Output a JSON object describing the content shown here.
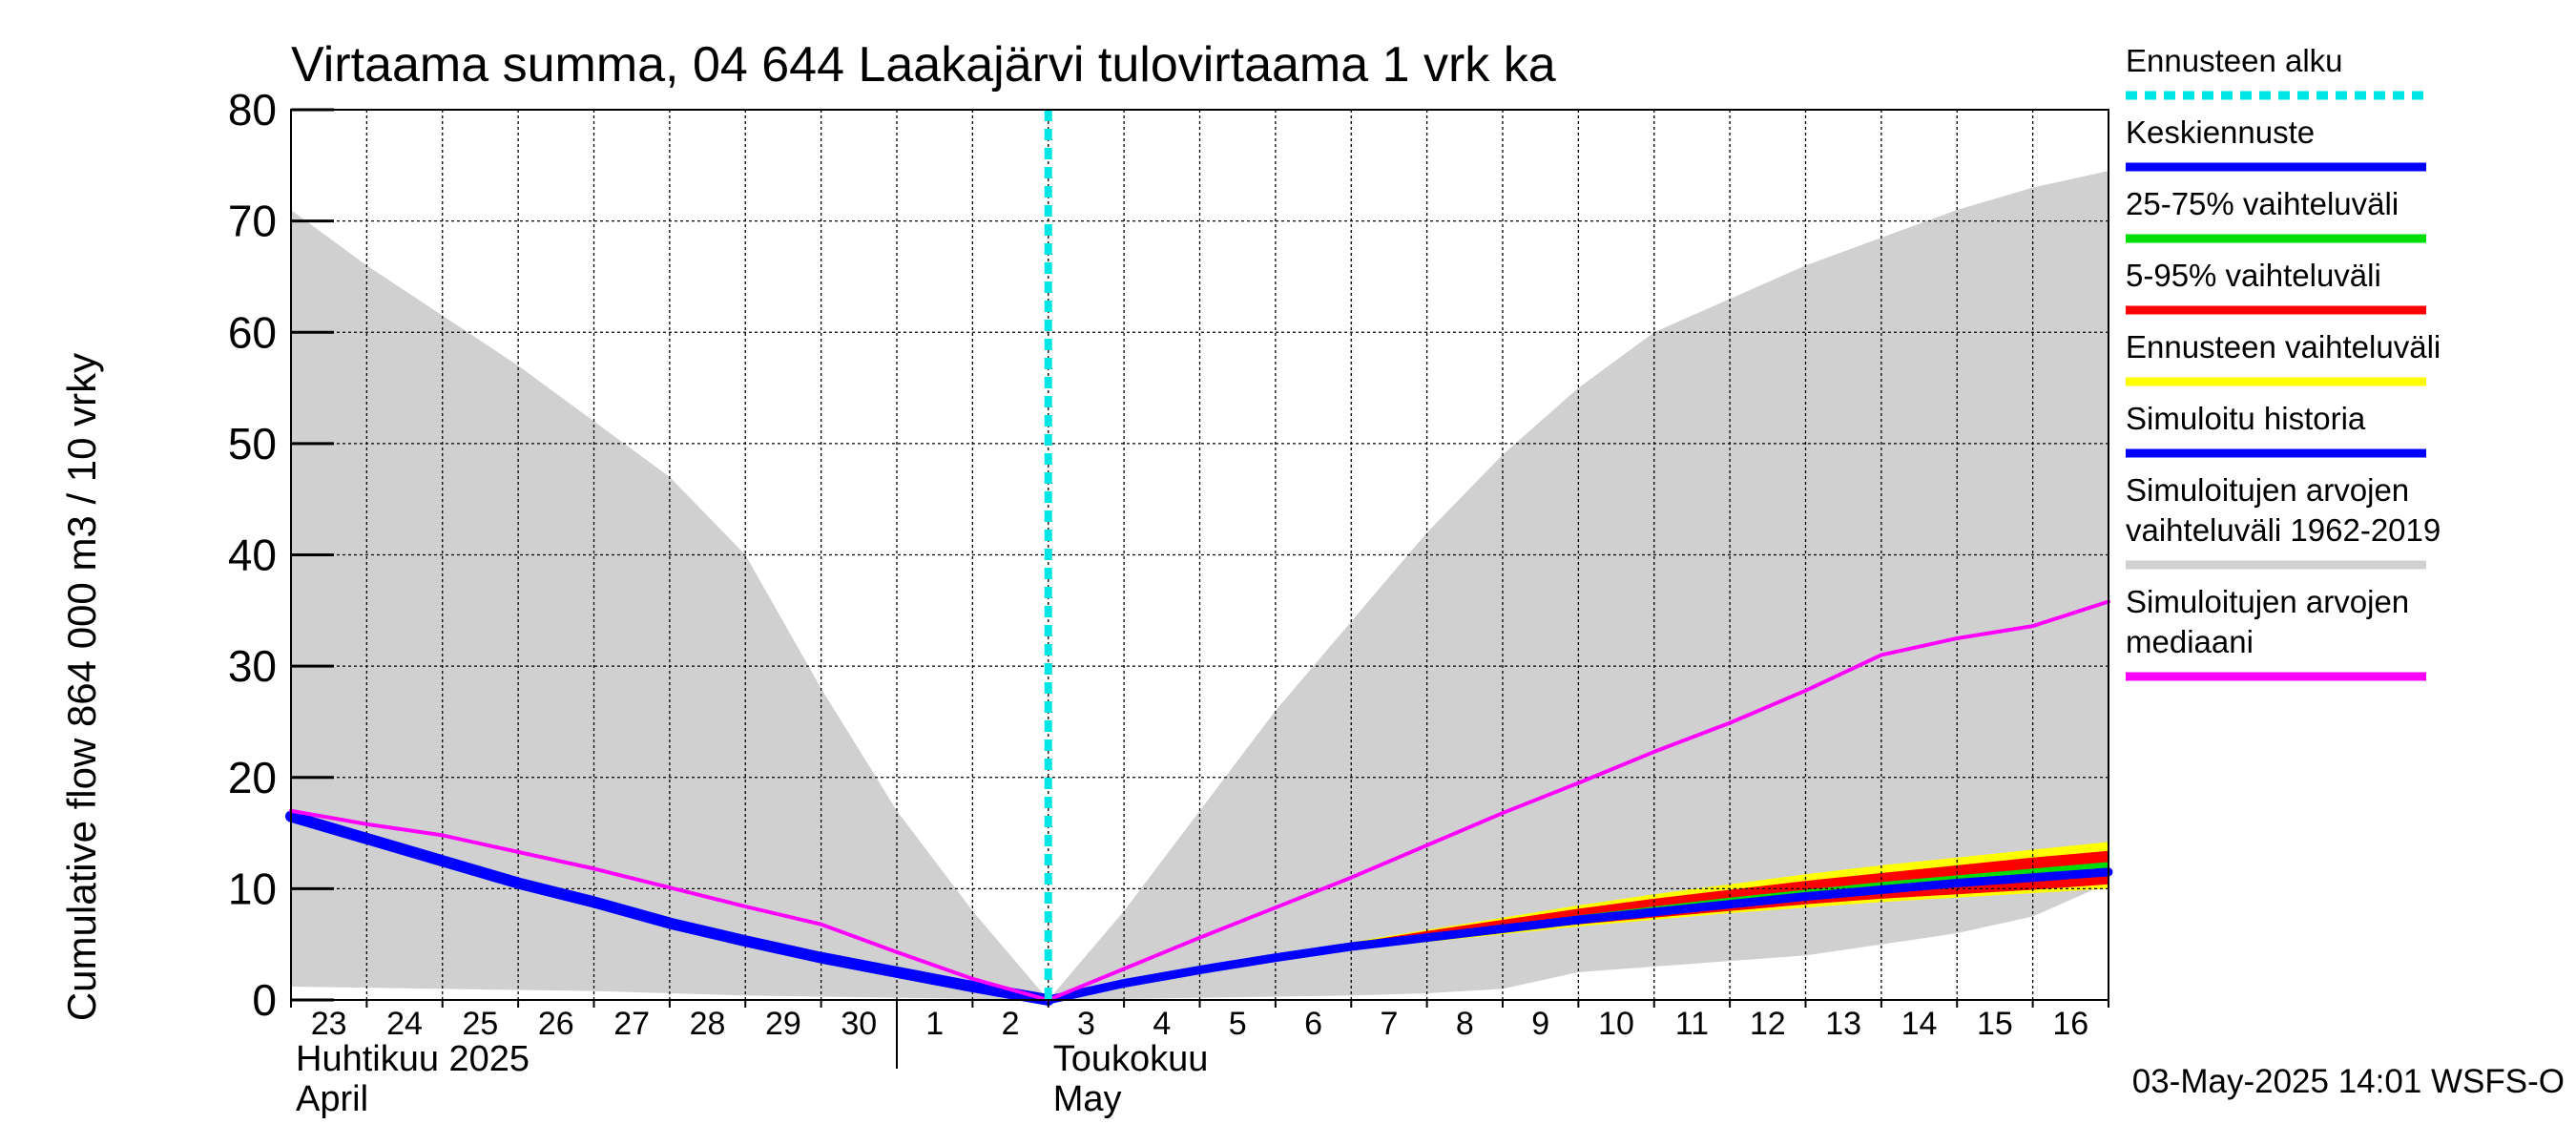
{
  "chart_data": {
    "type": "area",
    "title": "Virtaama summa, 04 644 Laakajärvi tulovirtaama 1 vrk ka",
    "ylabel": "Cumulative flow    864 000 m3 / 10 vrky",
    "xlabel": "",
    "ylim": [
      0,
      80
    ],
    "y_ticks": [
      0,
      10,
      20,
      30,
      40,
      50,
      60,
      70,
      80
    ],
    "grid": true,
    "legend_position": "right",
    "x_start": "2025-04-23",
    "x_end": "2025-05-17",
    "forecast_start": "2025-05-03",
    "x_tick_labels": [
      "23",
      "24",
      "25",
      "26",
      "27",
      "28",
      "29",
      "30",
      "1",
      "2",
      "3",
      "4",
      "5",
      "6",
      "7",
      "8",
      "9",
      "10",
      "11",
      "12",
      "13",
      "14",
      "15",
      "16"
    ],
    "x_tick_dates": [
      "2025-04-23",
      "2025-04-24",
      "2025-04-25",
      "2025-04-26",
      "2025-04-27",
      "2025-04-28",
      "2025-04-29",
      "2025-04-30",
      "2025-05-01",
      "2025-05-02",
      "2025-05-03",
      "2025-05-04",
      "2025-05-05",
      "2025-05-06",
      "2025-05-07",
      "2025-05-08",
      "2025-05-09",
      "2025-05-10",
      "2025-05-11",
      "2025-05-12",
      "2025-05-13",
      "2025-05-14",
      "2025-05-15",
      "2025-05-16"
    ],
    "month_labels": [
      {
        "line1": "Huhtikuu  2025",
        "line2": "April",
        "date": "2025-04-23"
      },
      {
        "line1": "Toukokuu",
        "line2": "May",
        "date": "2025-05-03"
      }
    ],
    "month_divider_date": "2025-05-01",
    "timestamp": "03-May-2025 14:01 WSFS-O",
    "series": [
      {
        "name": "Simuloitujen arvojen vaihteluväli 1962-2019",
        "kind": "band",
        "color": "#d0d0d0",
        "x": [
          "2025-04-23",
          "2025-04-24",
          "2025-04-25",
          "2025-04-26",
          "2025-04-27",
          "2025-04-28",
          "2025-04-29",
          "2025-04-30",
          "2025-05-01",
          "2025-05-02",
          "2025-05-03",
          "2025-05-04",
          "2025-05-05",
          "2025-05-06",
          "2025-05-07",
          "2025-05-08",
          "2025-05-09",
          "2025-05-10",
          "2025-05-11",
          "2025-05-12",
          "2025-05-13",
          "2025-05-14",
          "2025-05-15",
          "2025-05-16",
          "2025-05-17"
        ],
        "upper": [
          71,
          66,
          61.5,
          57,
          52,
          47,
          40,
          28,
          17,
          8,
          0,
          8,
          17,
          26,
          34,
          42,
          49,
          55,
          60,
          63,
          66,
          68.5,
          71,
          73,
          74.5
        ],
        "lower": [
          1.2,
          1.1,
          1.0,
          0.9,
          0.8,
          0.6,
          0.4,
          0.3,
          0.2,
          0.1,
          0,
          0.1,
          0.2,
          0.3,
          0.4,
          0.6,
          1.0,
          2.5,
          3.0,
          3.5,
          4.0,
          5.0,
          6.0,
          7.5,
          10.5
        ]
      },
      {
        "name": "Ennusteen vaihteluväli",
        "kind": "band",
        "color": "#ffff00",
        "x": [
          "2025-05-03",
          "2025-05-04",
          "2025-05-05",
          "2025-05-06",
          "2025-05-07",
          "2025-05-08",
          "2025-05-09",
          "2025-05-10",
          "2025-05-11",
          "2025-05-12",
          "2025-05-13",
          "2025-05-14",
          "2025-05-15",
          "2025-05-16",
          "2025-05-17"
        ],
        "upper": [
          0,
          1.6,
          3.0,
          4.1,
          5.2,
          6.3,
          7.4,
          8.5,
          9.5,
          10.4,
          11.3,
          12.1,
          12.8,
          13.5,
          14.2
        ],
        "lower": [
          0,
          1.4,
          2.6,
          3.6,
          4.5,
          5.2,
          5.9,
          6.6,
          7.2,
          7.8,
          8.3,
          8.8,
          9.2,
          9.6,
          10.0
        ]
      },
      {
        "name": "5-95% vaihteluväli",
        "kind": "band",
        "color": "#ff0000",
        "x": [
          "2025-05-03",
          "2025-05-04",
          "2025-05-05",
          "2025-05-06",
          "2025-05-07",
          "2025-05-08",
          "2025-05-09",
          "2025-05-10",
          "2025-05-11",
          "2025-05-12",
          "2025-05-13",
          "2025-05-14",
          "2025-05-15",
          "2025-05-16",
          "2025-05-17"
        ],
        "upper": [
          0,
          1.6,
          2.9,
          4.0,
          5.1,
          6.2,
          7.2,
          8.2,
          9.1,
          9.9,
          10.7,
          11.4,
          12.1,
          12.8,
          13.4
        ],
        "lower": [
          0,
          1.4,
          2.7,
          3.7,
          4.6,
          5.4,
          6.1,
          6.8,
          7.4,
          8.0,
          8.6,
          9.1,
          9.5,
          9.9,
          10.4
        ]
      },
      {
        "name": "25-75% vaihteluväli",
        "kind": "band",
        "color": "#00dd00",
        "x": [
          "2025-05-03",
          "2025-05-04",
          "2025-05-05",
          "2025-05-06",
          "2025-05-07",
          "2025-05-08",
          "2025-05-09",
          "2025-05-10",
          "2025-05-11",
          "2025-05-12",
          "2025-05-13",
          "2025-05-14",
          "2025-05-15",
          "2025-05-16",
          "2025-05-17"
        ],
        "upper": [
          0,
          1.55,
          2.8,
          3.9,
          4.9,
          5.8,
          6.7,
          7.6,
          8.4,
          9.2,
          9.9,
          10.6,
          11.2,
          11.8,
          12.4
        ],
        "lower": [
          0,
          1.45,
          2.7,
          3.7,
          4.7,
          5.5,
          6.3,
          7.1,
          7.8,
          8.5,
          9.2,
          9.8,
          10.3,
          10.8,
          11.2
        ]
      },
      {
        "name": "Simuloitu historia",
        "kind": "line",
        "color": "#0000ff",
        "width": 12,
        "x": [
          "2025-04-23",
          "2025-04-24",
          "2025-04-25",
          "2025-04-26",
          "2025-04-27",
          "2025-04-28",
          "2025-04-29",
          "2025-04-30",
          "2025-05-01",
          "2025-05-02",
          "2025-05-03"
        ],
        "values": [
          16.5,
          14.5,
          12.5,
          10.5,
          8.8,
          6.9,
          5.3,
          3.8,
          2.5,
          1.2,
          0
        ]
      },
      {
        "name": "Keskiennuste",
        "kind": "line",
        "color": "#0000ff",
        "width": 9,
        "x": [
          "2025-05-03",
          "2025-05-04",
          "2025-05-05",
          "2025-05-06",
          "2025-05-07",
          "2025-05-08",
          "2025-05-09",
          "2025-05-10",
          "2025-05-11",
          "2025-05-12",
          "2025-05-13",
          "2025-05-14",
          "2025-05-15",
          "2025-05-16",
          "2025-05-17"
        ],
        "values": [
          0,
          1.5,
          2.7,
          3.8,
          4.8,
          5.6,
          6.4,
          7.2,
          7.9,
          8.6,
          9.3,
          9.9,
          10.5,
          11.0,
          11.5
        ]
      },
      {
        "name": "Simuloitujen arvojen mediaani",
        "kind": "line",
        "color": "#ff00ff",
        "width": 4,
        "x": [
          "2025-04-23",
          "2025-04-24",
          "2025-04-25",
          "2025-04-26",
          "2025-04-27",
          "2025-04-28",
          "2025-04-29",
          "2025-04-30",
          "2025-05-01",
          "2025-05-02",
          "2025-05-03",
          "2025-05-04",
          "2025-05-05",
          "2025-05-06",
          "2025-05-07",
          "2025-05-08",
          "2025-05-09",
          "2025-05-10",
          "2025-05-11",
          "2025-05-12",
          "2025-05-13",
          "2025-05-14",
          "2025-05-15",
          "2025-05-16",
          "2025-05-17"
        ],
        "values": [
          17,
          15.8,
          14.8,
          13.3,
          11.8,
          10.1,
          8.4,
          6.8,
          4.3,
          1.9,
          0,
          2.8,
          5.6,
          8.3,
          11.0,
          13.9,
          16.8,
          19.5,
          22.3,
          24.9,
          27.8,
          31.0,
          32.5,
          33.6,
          35.8
        ]
      },
      {
        "name": "Ennusteen alku",
        "kind": "vline",
        "color": "#00e5e5",
        "x": "2025-05-03"
      }
    ],
    "legend": [
      {
        "label": "Ennusteen alku",
        "color": "#00e5e5",
        "style": "dotted"
      },
      {
        "label": "Keskiennuste",
        "color": "#0000ff",
        "style": "solid"
      },
      {
        "label": "25-75% vaihteluväli",
        "color": "#00dd00",
        "style": "solid"
      },
      {
        "label": "5-95% vaihteluväli",
        "color": "#ff0000",
        "style": "solid"
      },
      {
        "label": "Ennusteen vaihteluväli",
        "color": "#ffff00",
        "style": "solid"
      },
      {
        "label": "Simuloitu historia",
        "color": "#0000ff",
        "style": "solid"
      },
      {
        "label": "Simuloitujen arvojen\nvaihteluväli 1962-2019",
        "color": "#d0d0d0",
        "style": "solid"
      },
      {
        "label": "Simuloitujen arvojen\nmediaani",
        "color": "#ff00ff",
        "style": "solid"
      }
    ]
  }
}
